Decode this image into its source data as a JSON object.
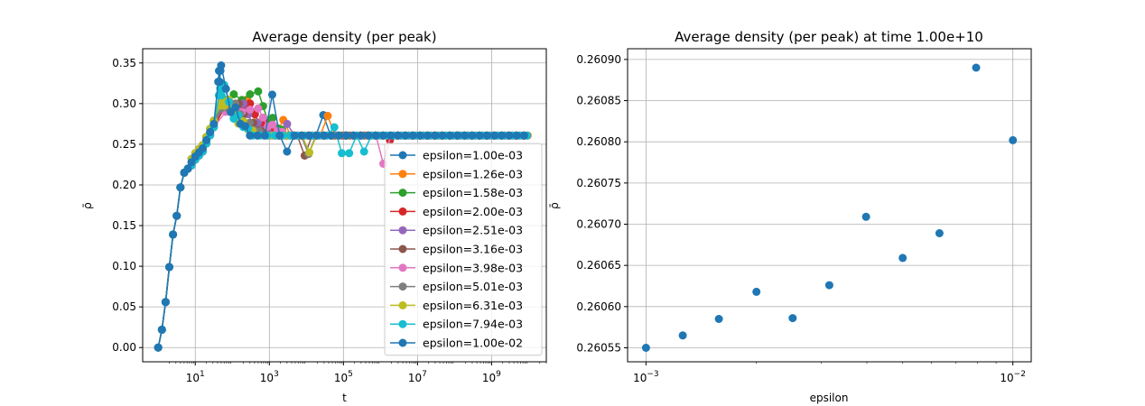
{
  "figure": {
    "background": "#ffffff"
  },
  "chart_data": [
    {
      "type": "line",
      "title": "Average density (per peak)",
      "xlabel": "t",
      "ylabel": "ρ̄",
      "xscale": "log",
      "xlim": [
        0.38,
        30000000000
      ],
      "ylim": [
        -0.0175,
        0.3675
      ],
      "grid": true,
      "legend": "lower-right",
      "xticks": [
        {
          "value": 10,
          "base": "10",
          "exp": "1"
        },
        {
          "value": 1000,
          "base": "10",
          "exp": "3"
        },
        {
          "value": 100000,
          "base": "10",
          "exp": "5"
        },
        {
          "value": 10000000,
          "base": "10",
          "exp": "7"
        },
        {
          "value": 1000000000,
          "base": "10",
          "exp": "9"
        }
      ],
      "yticks": [
        "0.00",
        "0.05",
        "0.10",
        "0.15",
        "0.20",
        "0.25",
        "0.30",
        "0.35"
      ],
      "series": [
        {
          "name": "epsilon=1.00e-03",
          "color": "#1f77b4"
        },
        {
          "name": "epsilon=1.26e-03",
          "color": "#ff7f0e"
        },
        {
          "name": "epsilon=1.58e-03",
          "color": "#2ca02c"
        },
        {
          "name": "epsilon=2.00e-03",
          "color": "#d62728"
        },
        {
          "name": "epsilon=2.51e-03",
          "color": "#9467bd"
        },
        {
          "name": "epsilon=3.16e-03",
          "color": "#8c564b"
        },
        {
          "name": "epsilon=3.98e-03",
          "color": "#e377c2"
        },
        {
          "name": "epsilon=5.01e-03",
          "color": "#7f7f7f"
        },
        {
          "name": "epsilon=6.31e-03",
          "color": "#bcbd22"
        },
        {
          "name": "epsilon=7.94e-03",
          "color": "#17becf"
        },
        {
          "name": "epsilon=1.00e-02",
          "color": "#1f77b4"
        }
      ],
      "common_rise": {
        "x": [
          1,
          1.259,
          1.585,
          1.995,
          2.512,
          3.162,
          3.981,
          5.012,
          6.31,
          7.943,
          10,
          12.59,
          15.85,
          19.95,
          25.12,
          31.62
        ],
        "y": [
          0.0,
          0.022,
          0.056,
          0.099,
          0.139,
          0.162,
          0.197,
          0.215,
          0.22,
          0.228,
          0.235,
          0.24,
          0.245,
          0.255,
          0.265,
          0.275
        ]
      },
      "plateau_level": 0.2608,
      "series_detail": [
        {
          "peak_x": 300,
          "peak_y": 0.3,
          "extra": [
            {
              "x": 2000,
              "y": 0.275
            },
            {
              "x": 30000,
              "y": 0.286
            }
          ],
          "settle_x": 50000
        },
        {
          "peak_x": 250,
          "peak_y": 0.305,
          "extra": [
            {
              "x": 2000,
              "y": 0.28
            },
            {
              "x": 30000,
              "y": 0.285
            }
          ],
          "settle_x": 40000
        },
        {
          "peak_x": 500,
          "peak_y": 0.315,
          "extra": [
            {
              "x": 2000,
              "y": 0.275
            }
          ],
          "settle_x": 10000
        },
        {
          "peak_x": 300,
          "peak_y": 0.3,
          "extra": [
            {
              "x": 2000,
              "y": 0.285
            },
            {
              "x": 1600000,
              "y": 0.255
            }
          ],
          "settle_x": 2000000
        },
        {
          "peak_x": 200,
          "peak_y": 0.3,
          "extra": [
            {
              "x": 2500,
              "y": 0.275
            }
          ],
          "settle_x": 5000
        },
        {
          "peak_x": 150,
          "peak_y": 0.3,
          "extra": [
            {
              "x": 8000,
              "y": 0.236
            }
          ],
          "settle_x": 10000
        },
        {
          "peak_x": 500,
          "peak_y": 0.294,
          "extra": [
            {
              "x": 1500000,
              "y": 0.226
            }
          ],
          "settle_x": 2000000
        },
        {
          "peak_x": 120,
          "peak_y": 0.3,
          "extra": [
            {
              "x": 10000,
              "y": 0.238
            }
          ],
          "settle_x": 20000
        },
        {
          "peak_x": 80,
          "peak_y": 0.305,
          "extra": [
            {
              "x": 12000,
              "y": 0.24
            }
          ],
          "settle_x": 20000
        },
        {
          "peak_x": 60,
          "peak_y": 0.323,
          "extra": [
            {
              "x": 50000,
              "y": 0.271
            },
            {
              "x": 100000,
              "y": 0.239
            },
            {
              "x": 150000,
              "y": 0.239
            },
            {
              "x": 300000,
              "y": 0.241
            }
          ],
          "settle_x": 500000
        },
        {
          "peak_x": 50,
          "peak_y": 0.347,
          "extra": [
            {
              "x": 300,
              "y": 0.275
            },
            {
              "x": 1000,
              "y": 0.311
            },
            {
              "x": 3000,
              "y": 0.241
            }
          ],
          "settle_x": 5000
        }
      ]
    },
    {
      "type": "scatter",
      "title": "Average density (per peak) at time 1.00e+10",
      "xlabel": "epsilon",
      "ylabel": "ρ̄",
      "xscale": "log",
      "xlim": [
        0.000891,
        0.01122
      ],
      "ylim": [
        0.260533,
        0.260913
      ],
      "grid": true,
      "color": "#1f77b4",
      "xticks": [
        {
          "value": 0.001,
          "base": "10",
          "exp": "−3"
        },
        {
          "value": 0.01,
          "base": "10",
          "exp": "−2"
        }
      ],
      "yticks": [
        "0.26055",
        "0.26060",
        "0.26065",
        "0.26070",
        "0.26075",
        "0.26080",
        "0.26085",
        "0.26090"
      ],
      "x": [
        0.001,
        0.00126,
        0.00158,
        0.002,
        0.00251,
        0.00316,
        0.00398,
        0.00501,
        0.00631,
        0.00794,
        0.01
      ],
      "y": [
        0.26055,
        0.260565,
        0.260585,
        0.260618,
        0.260586,
        0.260626,
        0.260709,
        0.260659,
        0.260689,
        0.26089,
        0.260802
      ]
    }
  ]
}
